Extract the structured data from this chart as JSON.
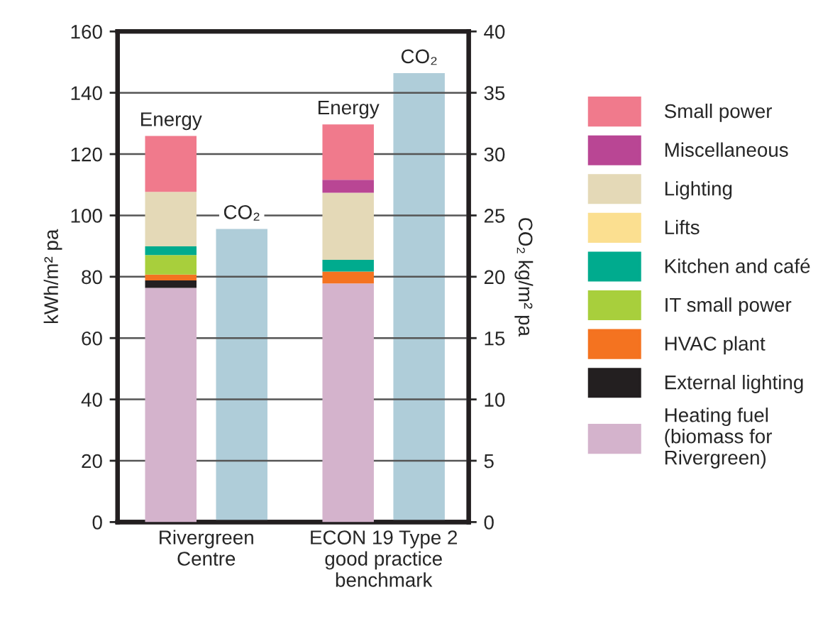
{
  "chart_data": {
    "type": "bar",
    "stacked": true,
    "categories": [
      "Rivergreen\nCentre",
      "ECON 19 Type 2\ngood practice\nbenchmark"
    ],
    "ylabel": "kWh/m² pa",
    "y2label": "CO₂ kg/m² pa",
    "ylim": [
      0,
      160
    ],
    "yticks": [
      0,
      20,
      40,
      60,
      80,
      100,
      120,
      140,
      160
    ],
    "y2lim": [
      0,
      40
    ],
    "y2ticks": [
      0,
      5,
      10,
      15,
      20,
      25,
      30,
      35,
      40
    ],
    "grid": "y",
    "legend": "right",
    "series": [
      {
        "name": "Heating fuel\n(biomass for\nRivergreen)",
        "color": "#d4b3cc",
        "values": [
          76.4,
          77.8
        ]
      },
      {
        "name": "External lighting",
        "color": "#231f20",
        "values": [
          2.4,
          null
        ]
      },
      {
        "name": "HVAC plant",
        "color": "#f47320",
        "values": [
          1.9,
          3.9
        ]
      },
      {
        "name": "IT small power",
        "color": "#a8cf3c",
        "values": [
          6.4,
          null
        ]
      },
      {
        "name": "Kitchen and café",
        "color": "#00ab8e",
        "values": [
          2.8,
          3.8
        ]
      },
      {
        "name": "Lifts",
        "color": "#fbdf90",
        "values": [
          null,
          null
        ]
      },
      {
        "name": "Lighting",
        "color": "#e4d9b7",
        "values": [
          17.8,
          21.9
        ]
      },
      {
        "name": "Miscellaneous",
        "color": "#b94694",
        "values": [
          null,
          4.2
        ]
      },
      {
        "name": "Small power",
        "color": "#f07a8c",
        "values": [
          18.2,
          18.1
        ]
      },
      {
        "color": "#afcdd9",
        "axis": "y2",
        "values": [
          23.9,
          36.6
        ]
      }
    ],
    "annotations": [
      "Energy",
      "CO₂",
      "Energy",
      "CO₂"
    ]
  }
}
